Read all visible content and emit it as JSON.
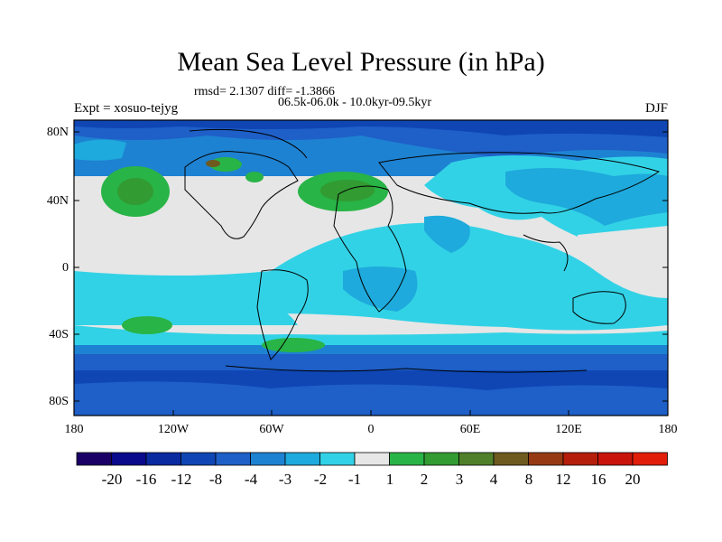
{
  "title": "Mean Sea Level Pressure (in hPa)",
  "stats_line": "rmsd= 2.1307 diff= -1.3866",
  "period_line": "06.5k-06.0k - 10.0kyr-09.5kyr",
  "experiment": "Expt = xosuo-tejyg",
  "season": "DJF",
  "lat_ticks": [
    "80N",
    "40N",
    "0",
    "40S",
    "80S"
  ],
  "lon_ticks": [
    "180",
    "120W",
    "60W",
    "0",
    "60E",
    "120E",
    "180"
  ],
  "colorbar": {
    "labels": [
      "-20",
      "-16",
      "-12",
      "-8",
      "-4",
      "-3",
      "-2",
      "-1",
      "1",
      "2",
      "3",
      "4",
      "8",
      "12",
      "16",
      "20"
    ],
    "colors": [
      "#1a0066",
      "#0a0a8c",
      "#0a2aa0",
      "#0f46b4",
      "#1e5fc8",
      "#1e82d2",
      "#1eaadc",
      "#32d2e6",
      "#e6e6e6",
      "#28b446",
      "#329b32",
      "#50802a",
      "#6e5a1e",
      "#963a14",
      "#b41e0a",
      "#e11e0a"
    ]
  }
}
